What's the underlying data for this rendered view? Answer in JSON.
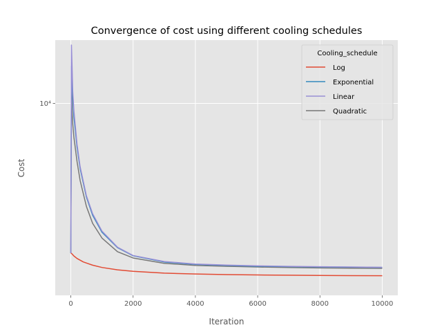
{
  "chart_data": {
    "type": "line",
    "title": "Convergence of cost using different cooling schedules",
    "xlabel": "Iteration",
    "ylabel": "Cost",
    "xlim": [
      -500,
      10500
    ],
    "ylim_log10": [
      3.09,
      4.3
    ],
    "y_scale": "log",
    "grid": true,
    "x_ticks": [
      0,
      2000,
      4000,
      6000,
      8000,
      10000
    ],
    "x_tick_labels": [
      "0",
      "2000",
      "4000",
      "6000",
      "8000",
      "10000"
    ],
    "y_ticks": [
      10000
    ],
    "y_tick_labels": [
      "10⁴"
    ],
    "legend": {
      "title": "Cooling_schedule",
      "position": "top-right"
    },
    "series": [
      {
        "name": "Log",
        "color": "#E24A33",
        "x": [
          0,
          20,
          100,
          200,
          400,
          700,
          1000,
          1500,
          2000,
          3000,
          4000,
          5000,
          6000,
          7000,
          8000,
          9000,
          10000
        ],
        "y": [
          1950,
          1946,
          1890,
          1840,
          1772,
          1710,
          1668,
          1625,
          1600,
          1568,
          1553,
          1543,
          1537,
          1533,
          1529,
          1526,
          1524
        ]
      },
      {
        "name": "Exponential",
        "color": "#348ABD",
        "x": [
          0,
          20,
          40,
          60,
          100,
          200,
          300,
          500,
          700,
          1000,
          1500,
          2000,
          3000,
          4000,
          5000,
          6000,
          7000,
          8000,
          9000,
          10000
        ],
        "y": [
          1950,
          15000,
          13000,
          10500,
          8600,
          6200,
          4900,
          3600,
          2950,
          2450,
          2070,
          1895,
          1770,
          1725,
          1705,
          1690,
          1683,
          1677,
          1673,
          1669
        ]
      },
      {
        "name": "Linear",
        "color": "#988ED5",
        "x": [
          0,
          20,
          40,
          60,
          100,
          200,
          300,
          500,
          700,
          1000,
          1500,
          2000,
          3000,
          4000,
          5000,
          6000,
          7000,
          8000,
          9000,
          10000
        ],
        "y": [
          1950,
          18900,
          15000,
          11500,
          9200,
          6400,
          5000,
          3650,
          3000,
          2480,
          2080,
          1900,
          1780,
          1732,
          1712,
          1698,
          1688,
          1681,
          1676,
          1671
        ]
      },
      {
        "name": "Quadratic",
        "color": "#777777",
        "x": [
          0,
          20,
          40,
          60,
          100,
          200,
          300,
          500,
          700,
          1000,
          1500,
          2000,
          3000,
          4000,
          5000,
          6000,
          7000,
          8000,
          9000,
          10000
        ],
        "y": [
          1950,
          11500,
          9200,
          8000,
          6900,
          5300,
          4300,
          3250,
          2700,
          2300,
          1980,
          1850,
          1745,
          1706,
          1689,
          1676,
          1667,
          1660,
          1655,
          1652
        ]
      }
    ]
  }
}
